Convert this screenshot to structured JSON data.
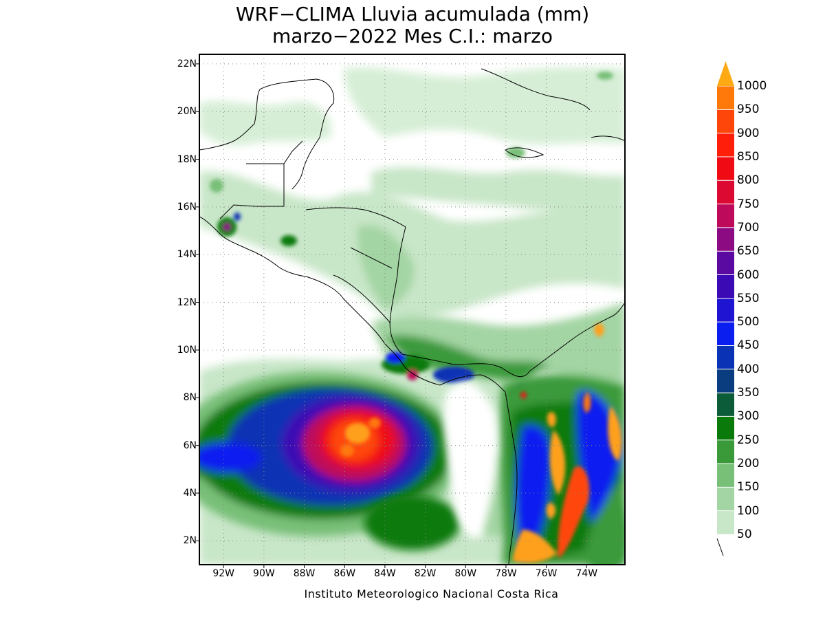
{
  "title": {
    "line1": "WRF−CLIMA Lluvia acumulada (mm)",
    "line2": "marzo−2022 Mes C.I.: marzo"
  },
  "credit": "Instituto Meteorologico Nacional Costa Rica",
  "map": {
    "lon_range": [
      -93.2,
      -72.1
    ],
    "lat_range": [
      1.0,
      22.4
    ],
    "lat_ticks": [
      {
        "value": 22,
        "label": "22N"
      },
      {
        "value": 20,
        "label": "20N"
      },
      {
        "value": 18,
        "label": "18N"
      },
      {
        "value": 16,
        "label": "16N"
      },
      {
        "value": 14,
        "label": "14N"
      },
      {
        "value": 12,
        "label": "12N"
      },
      {
        "value": 10,
        "label": "10N"
      },
      {
        "value": 8,
        "label": "8N"
      },
      {
        "value": 6,
        "label": "6N"
      },
      {
        "value": 4,
        "label": "4N"
      },
      {
        "value": 2,
        "label": "2N"
      }
    ],
    "lon_ticks": [
      {
        "value": -92,
        "label": "92W"
      },
      {
        "value": -90,
        "label": "90W"
      },
      {
        "value": -88,
        "label": "88W"
      },
      {
        "value": -86,
        "label": "86W"
      },
      {
        "value": -84,
        "label": "84W"
      },
      {
        "value": -82,
        "label": "82W"
      },
      {
        "value": -80,
        "label": "80W"
      },
      {
        "value": -78,
        "label": "78W"
      },
      {
        "value": -76,
        "label": "76W"
      },
      {
        "value": -74,
        "label": "74W"
      }
    ],
    "grid": "dotted"
  },
  "colorbar": {
    "levels": [
      {
        "label": "50",
        "color": "#c8e6c8"
      },
      {
        "label": "100",
        "color": "#a3d4a3"
      },
      {
        "label": "150",
        "color": "#78bf78"
      },
      {
        "label": "200",
        "color": "#3a9a3a"
      },
      {
        "label": "250",
        "color": "#0a7a0a"
      },
      {
        "label": "300",
        "color": "#0c5c3a"
      },
      {
        "label": "350",
        "color": "#0a3c80"
      },
      {
        "label": "400",
        "color": "#0a32b4"
      },
      {
        "label": "450",
        "color": "#0a1ef0"
      },
      {
        "label": "500",
        "color": "#1e14d2"
      },
      {
        "label": "550",
        "color": "#3c0ab4"
      },
      {
        "label": "600",
        "color": "#5a0aa0"
      },
      {
        "label": "650",
        "color": "#8c0a82"
      },
      {
        "label": "700",
        "color": "#be0a5a"
      },
      {
        "label": "750",
        "color": "#dc0a32"
      },
      {
        "label": "800",
        "color": "#f00a14"
      },
      {
        "label": "850",
        "color": "#ff1e0a"
      },
      {
        "label": "900",
        "color": "#ff460a"
      },
      {
        "label": "950",
        "color": "#ff780a"
      },
      {
        "label": "1000",
        "color": "#ffa01e"
      }
    ],
    "top_arrow_color": "#ffaa14"
  },
  "rain_features": [
    {
      "lon": -86.0,
      "lat": 6.0,
      "value": 950
    },
    {
      "lon": -84.5,
      "lat": 8.5,
      "value": 550
    },
    {
      "lon": -77.0,
      "lat": 6.5,
      "value": 1000
    },
    {
      "lon": -75.0,
      "lat": 5.0,
      "value": 950
    },
    {
      "lon": -72.8,
      "lat": 6.0,
      "value": 1000
    },
    {
      "lon": -73.7,
      "lat": 10.9,
      "value": 900
    },
    {
      "lon": -76.0,
      "lat": 2.0,
      "value": 950
    },
    {
      "lon": -91.2,
      "lat": 15.2,
      "value": 700
    }
  ]
}
